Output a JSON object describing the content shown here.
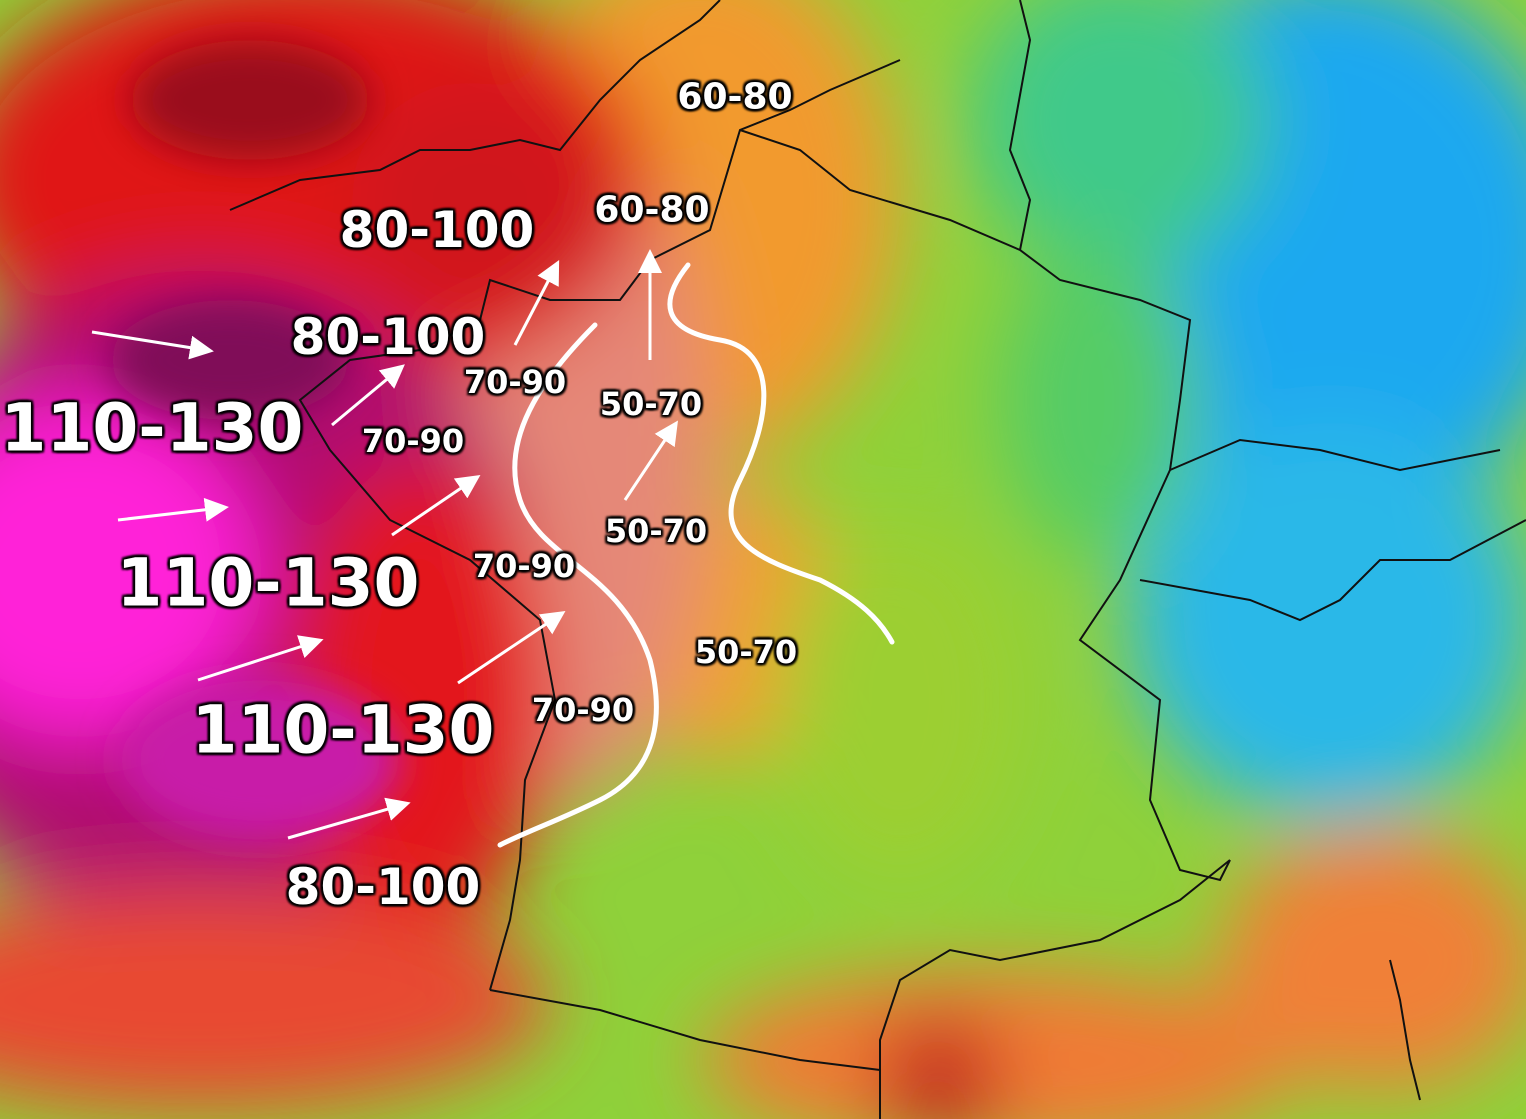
{
  "map": {
    "subject": "wind gust forecast map over France",
    "colors": {
      "calm": "#7ed321",
      "moderate": "#f5a623",
      "strong": "#e8141c",
      "very_strong": "#a0087a",
      "extreme": "#ff1fd0",
      "low": "#29b6f6"
    },
    "labels": [
      "60-80",
      "60-80",
      "80-100",
      "80-100",
      "110-130",
      "70-90",
      "70-90",
      "50-70",
      "50-70",
      "110-130",
      "70-90",
      "50-70",
      "110-130",
      "70-90",
      "80-100"
    ]
  }
}
